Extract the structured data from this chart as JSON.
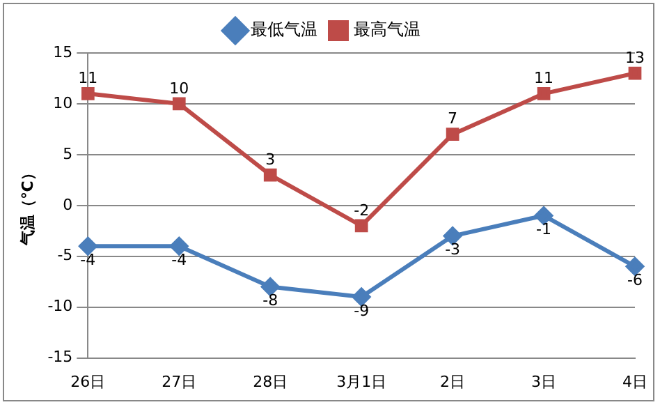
{
  "chart_data": {
    "type": "line",
    "ylabel": "气温（℃）",
    "categories": [
      "26日",
      "27日",
      "28日",
      "3月1日",
      "2日",
      "3日",
      "4日"
    ],
    "series": [
      {
        "name": "最低气温",
        "color": "#4a7ebb",
        "marker": "diamond",
        "values": [
          -4,
          -4,
          -8,
          -9,
          -3,
          -1,
          -6
        ]
      },
      {
        "name": "最高气温",
        "color": "#be4b48",
        "marker": "square",
        "values": [
          11,
          10,
          3,
          -2,
          7,
          11,
          13
        ]
      }
    ],
    "ylim": [
      -15,
      15
    ],
    "yticks": [
      -15,
      -10,
      -5,
      0,
      5,
      10,
      15
    ],
    "grid": "y",
    "legend": "top",
    "data_labels": true,
    "line_style": "solid"
  }
}
